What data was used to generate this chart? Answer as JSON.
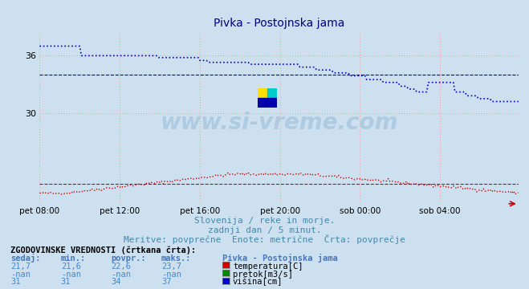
{
  "title": "Pivka - Postojnska jama",
  "background_color": "#cce0f0",
  "plot_bg_color": "#cce0f0",
  "fig_bg_color": "#cce0f0",
  "subtitle1": "Slovenija / reke in morje.",
  "subtitle2": "zadnji dan / 5 minut.",
  "subtitle3": "Meritve: povprečne  Enote: metrične  Črta: povprečje",
  "xlabel_ticks": [
    "pet 08:00",
    "pet 12:00",
    "pet 16:00",
    "pet 20:00",
    "sob 00:00",
    "sob 04:00"
  ],
  "ytick_values": [
    30,
    36
  ],
  "ylim": [
    20.5,
    38.5
  ],
  "xlim": [
    0,
    287
  ],
  "watermark": "www.si-vreme.com",
  "grid_color": "#ffaaaa",
  "hist_title": "ZGODOVINSKE VREDNOSTI (črtkana črta):",
  "col_headers": [
    "sedaj:",
    "min.:",
    "povpr.:",
    "maks.:"
  ],
  "row1": [
    "21,7",
    "21,6",
    "22,6",
    "23,7"
  ],
  "row2": [
    "-nan",
    "-nan",
    "-nan",
    "-nan"
  ],
  "row3": [
    "31",
    "31",
    "34",
    "37"
  ],
  "legend_title": "Pivka - Postojnska jama",
  "legend_items": [
    "temperatura[C]",
    "pretok[m3/s]",
    "višina[cm]"
  ],
  "legend_colors": [
    "#cc0000",
    "#008800",
    "#0000cc"
  ],
  "temp_color": "#cc0000",
  "flow_color": "#008800",
  "height_color": "#0000cc",
  "temp_mean": 22.6,
  "height_mean": 34.0,
  "n_points": 288,
  "tick_x_positions": [
    0,
    48,
    96,
    144,
    192,
    240
  ]
}
